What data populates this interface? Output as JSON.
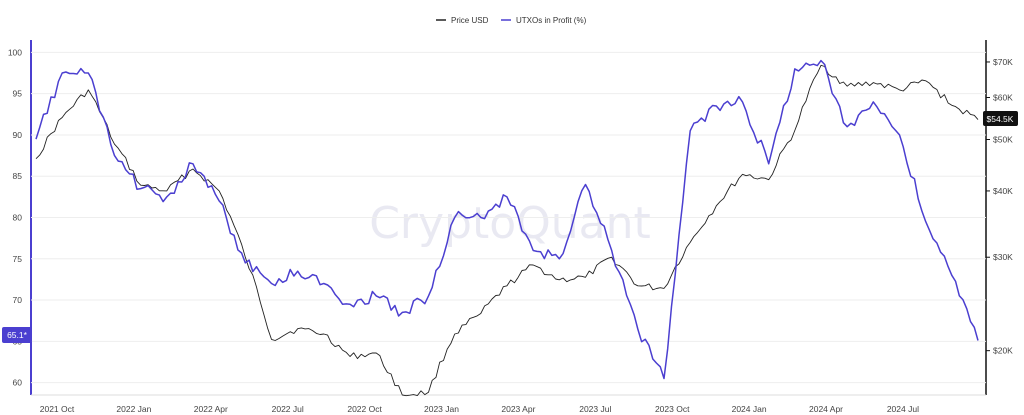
{
  "watermark": "CryptoQuant",
  "colors": {
    "price": "#222222",
    "utxo": "#4b3fd0",
    "grid": "#eeeeee",
    "badge_dark": "#111111"
  },
  "chart_data": {
    "type": "line",
    "legend": {
      "placement": "top-center",
      "items": [
        "Price USD",
        "UTXOs in Profit (%)"
      ]
    },
    "grid": true,
    "x_axis": {
      "ticks": [
        "2021 Oct",
        "2022 Jan",
        "2022 Apr",
        "2022 Jul",
        "2022 Oct",
        "2023 Jan",
        "2023 Apr",
        "2023 Jul",
        "2023 Oct",
        "2024 Jan",
        "2024 Apr",
        "2024 Jul"
      ]
    },
    "y_left": {
      "ticks": [
        "60",
        "65",
        "70",
        "75",
        "80",
        "85",
        "90",
        "95",
        "100"
      ],
      "range": [
        58.5,
        101.5
      ]
    },
    "y_right": {
      "scale": "log",
      "ticks": [
        "$20K",
        "$30K",
        "$40K",
        "$50K",
        "$60K",
        "$70K"
      ],
      "range": [
        16500,
        77000
      ]
    },
    "badges": {
      "utxo_last": "65.1*",
      "price_last": "$54.5K"
    },
    "x": [
      "2021-09",
      "2021-10",
      "2021-11",
      "2021-12",
      "2022-01",
      "2022-02",
      "2022-03",
      "2022-04",
      "2022-05",
      "2022-06",
      "2022-07",
      "2022-08",
      "2022-09",
      "2022-10",
      "2022-11",
      "2022-12",
      "2023-01",
      "2023-02",
      "2023-03",
      "2023-04",
      "2023-05",
      "2023-06",
      "2023-07",
      "2023-08",
      "2023-09",
      "2023-10",
      "2023-11",
      "2023-12",
      "2024-01",
      "2024-02",
      "2024-03",
      "2024-04",
      "2024-05",
      "2024-06",
      "2024-07",
      "2024-08",
      "2024-09"
    ],
    "series": [
      {
        "name": "Price USD",
        "axis": "right",
        "values": [
          46000,
          55000,
          62000,
          49000,
          41000,
          40000,
          44000,
          40000,
          30000,
          21000,
          22000,
          21500,
          19500,
          19800,
          16500,
          16700,
          21500,
          23500,
          26500,
          29000,
          27200,
          27500,
          30000,
          26500,
          26200,
          32000,
          37500,
          43000,
          42000,
          52000,
          69000,
          63000,
          64000,
          62000,
          64500,
          58000,
          54500
        ]
      },
      {
        "name": "UTXOs in Profit (%)",
        "axis": "left",
        "values": [
          89.5,
          97.5,
          97.5,
          87.5,
          83.5,
          82.5,
          86.5,
          82,
          74.5,
          72,
          73.5,
          72,
          69.5,
          70.5,
          68.5,
          70.5,
          80,
          80,
          82.5,
          76,
          75,
          84,
          76,
          66.5,
          60.5,
          90.5,
          93.5,
          94,
          86.5,
          98,
          99,
          91,
          94,
          90,
          79.5,
          73,
          65.1
        ]
      }
    ]
  }
}
